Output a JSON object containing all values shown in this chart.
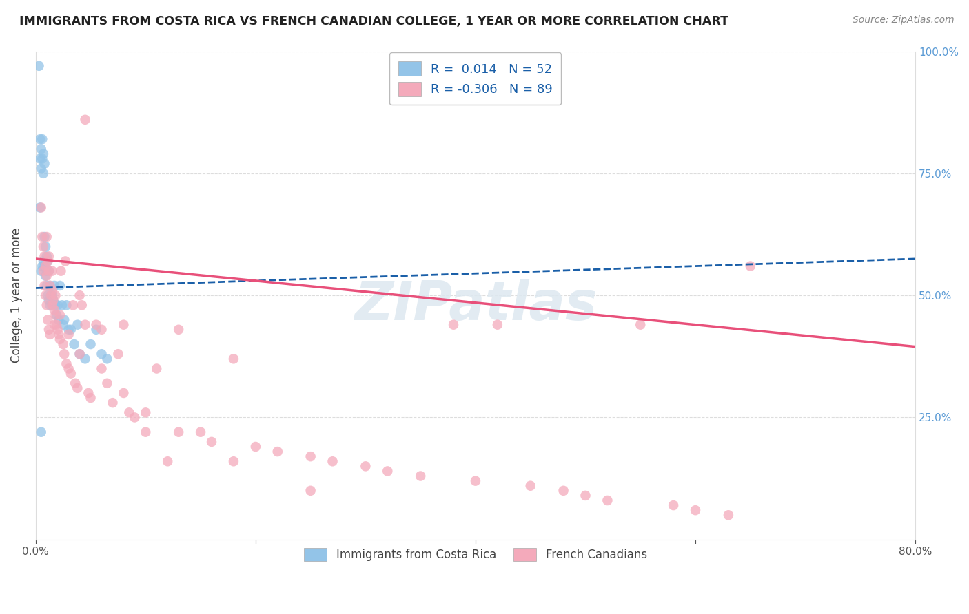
{
  "title": "IMMIGRANTS FROM COSTA RICA VS FRENCH CANADIAN COLLEGE, 1 YEAR OR MORE CORRELATION CHART",
  "source": "Source: ZipAtlas.com",
  "ylabel": "College, 1 year or more",
  "xlim": [
    0.0,
    0.8
  ],
  "ylim": [
    0.0,
    1.0
  ],
  "blue_color": "#93C4E8",
  "pink_color": "#F4AABB",
  "blue_line_color": "#1A5FA8",
  "pink_line_color": "#E8507A",
  "blue_line_y0": 0.515,
  "blue_line_y1": 0.575,
  "pink_line_y0": 0.575,
  "pink_line_y1": 0.395,
  "watermark_text": "ZIPatlas",
  "right_tick_color": "#5B9BD5",
  "blue_scatter_x": [
    0.003,
    0.004,
    0.004,
    0.004,
    0.005,
    0.005,
    0.005,
    0.006,
    0.006,
    0.006,
    0.007,
    0.007,
    0.007,
    0.008,
    0.008,
    0.008,
    0.009,
    0.009,
    0.01,
    0.01,
    0.01,
    0.011,
    0.011,
    0.012,
    0.012,
    0.013,
    0.013,
    0.014,
    0.015,
    0.015,
    0.016,
    0.017,
    0.018,
    0.019,
    0.02,
    0.021,
    0.022,
    0.024,
    0.025,
    0.026,
    0.028,
    0.03,
    0.032,
    0.035,
    0.038,
    0.04,
    0.045,
    0.05,
    0.055,
    0.06,
    0.065,
    0.005
  ],
  "blue_scatter_y": [
    0.97,
    0.82,
    0.78,
    0.68,
    0.8,
    0.76,
    0.55,
    0.82,
    0.78,
    0.56,
    0.79,
    0.75,
    0.57,
    0.77,
    0.62,
    0.56,
    0.6,
    0.54,
    0.58,
    0.55,
    0.52,
    0.57,
    0.5,
    0.55,
    0.49,
    0.52,
    0.48,
    0.5,
    0.5,
    0.48,
    0.49,
    0.52,
    0.48,
    0.46,
    0.48,
    0.45,
    0.52,
    0.48,
    0.44,
    0.45,
    0.48,
    0.43,
    0.43,
    0.4,
    0.44,
    0.38,
    0.37,
    0.4,
    0.43,
    0.38,
    0.37,
    0.22
  ],
  "pink_scatter_x": [
    0.005,
    0.006,
    0.007,
    0.007,
    0.008,
    0.008,
    0.009,
    0.009,
    0.01,
    0.01,
    0.011,
    0.011,
    0.012,
    0.012,
    0.013,
    0.013,
    0.014,
    0.015,
    0.015,
    0.016,
    0.017,
    0.017,
    0.018,
    0.019,
    0.02,
    0.021,
    0.022,
    0.023,
    0.025,
    0.026,
    0.027,
    0.028,
    0.03,
    0.032,
    0.034,
    0.036,
    0.038,
    0.04,
    0.042,
    0.045,
    0.048,
    0.05,
    0.055,
    0.06,
    0.065,
    0.045,
    0.07,
    0.075,
    0.08,
    0.085,
    0.09,
    0.1,
    0.11,
    0.12,
    0.13,
    0.15,
    0.16,
    0.18,
    0.2,
    0.22,
    0.25,
    0.27,
    0.3,
    0.32,
    0.35,
    0.38,
    0.4,
    0.42,
    0.45,
    0.48,
    0.5,
    0.52,
    0.55,
    0.58,
    0.6,
    0.63,
    0.65,
    0.01,
    0.012,
    0.015,
    0.018,
    0.022,
    0.03,
    0.04,
    0.06,
    0.08,
    0.1,
    0.13,
    0.18,
    0.25
  ],
  "pink_scatter_y": [
    0.68,
    0.62,
    0.6,
    0.55,
    0.58,
    0.52,
    0.56,
    0.5,
    0.54,
    0.48,
    0.57,
    0.45,
    0.55,
    0.43,
    0.52,
    0.42,
    0.5,
    0.51,
    0.48,
    0.49,
    0.47,
    0.44,
    0.46,
    0.44,
    0.43,
    0.42,
    0.41,
    0.55,
    0.4,
    0.38,
    0.57,
    0.36,
    0.35,
    0.34,
    0.48,
    0.32,
    0.31,
    0.5,
    0.48,
    0.44,
    0.3,
    0.29,
    0.44,
    0.43,
    0.32,
    0.86,
    0.28,
    0.38,
    0.44,
    0.26,
    0.25,
    0.22,
    0.35,
    0.16,
    0.43,
    0.22,
    0.2,
    0.37,
    0.19,
    0.18,
    0.17,
    0.16,
    0.15,
    0.14,
    0.13,
    0.44,
    0.12,
    0.44,
    0.11,
    0.1,
    0.09,
    0.08,
    0.44,
    0.07,
    0.06,
    0.05,
    0.56,
    0.62,
    0.58,
    0.55,
    0.5,
    0.46,
    0.42,
    0.38,
    0.35,
    0.3,
    0.26,
    0.22,
    0.16,
    0.1
  ]
}
